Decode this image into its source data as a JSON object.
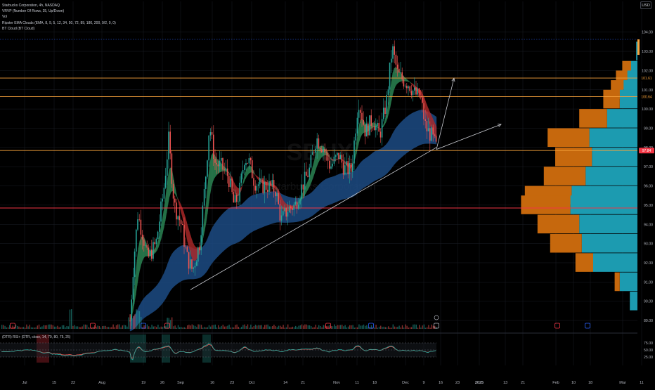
{
  "legend": {
    "title": "Starbucks Corporation, 4h, NASDAQ",
    "lines": [
      "VRVP (Number Of Rows, 35, Up/Down)",
      "Vol",
      "Ripster EMA Clouds (EMA, 8, 9, 5, 12, 34, 50, 72, 89, 180, 200, 9/2, 0, 0)",
      "BT Cloud (BT Cloud)"
    ],
    "currency": "USD",
    "watermark": "SBUX",
    "watermark_sub": "Starbucks Corporation"
  },
  "indicator": {
    "label": "(DTR) RSI+ (DTR, close, 14, 70, 80, 75, 25)",
    "levels": [
      75,
      50,
      25
    ],
    "level_labels": [
      "75.00",
      "50.00",
      "25.00"
    ]
  },
  "time_labels": [
    "Jul",
    "15",
    "22",
    "Aug",
    "19",
    "26",
    "Sep",
    "16",
    "23",
    "Oct",
    "14",
    "21",
    "Nov",
    "11",
    "18",
    "Dec",
    "9",
    "16",
    "23",
    "2025",
    "13",
    "21",
    "Feb",
    "10",
    "18",
    "Mar",
    "11"
  ],
  "price_labels": [
    "104.00",
    "103.00",
    "102.00",
    "101.00",
    "100.00",
    "99.00",
    "98.00",
    "97.00",
    "96.00",
    "95.00",
    "94.00",
    "93.00",
    "92.00",
    "91.00",
    "90.00",
    "89.00"
  ],
  "markers": {
    "current_price": "97.84",
    "level_1": "101.61",
    "level_2": "100.64"
  },
  "colors": {
    "background": "#000000",
    "up": "#26a69a",
    "down": "#ef5350",
    "orange_line": "#f7a23b",
    "red_line": "#f23645",
    "vrvp_up": "#1c9bb0",
    "vrvp_down": "#c6680d",
    "ema_blue": "#1e4f8a",
    "ema_green": "#2e8b57",
    "ema_red": "#b02a2a",
    "grid": "#1a1d24"
  },
  "chart_data": {
    "type": "candlestick",
    "symbol": "SBUX",
    "interval": "4h",
    "ylim": [
      88.6,
      104.5
    ],
    "horizontal_levels": [
      {
        "price": 101.61,
        "color": "orange"
      },
      {
        "price": 100.64,
        "color": "orange"
      },
      {
        "price": 97.84,
        "color": "orange"
      },
      {
        "price": 94.85,
        "color": "red"
      }
    ],
    "trendline": {
      "from": {
        "date": "Sep 9",
        "price": 90.6
      },
      "to": {
        "date": "Dec 13",
        "price": 98.0
      }
    },
    "projections": [
      {
        "from": {
          "date": "Dec 13",
          "price": 97.9
        },
        "to": {
          "date": "Dec 19",
          "price": 101.6
        }
      },
      {
        "from": {
          "date": "Dec 13",
          "price": 97.9
        },
        "to": {
          "date": "Jan 8",
          "price": 99.2
        }
      }
    ],
    "vrvp_rows": [
      {
        "price": 103.0,
        "up": 0.01,
        "down": 0.0
      },
      {
        "price": 102.0,
        "up": 0.05,
        "down": 0.07
      },
      {
        "price": 101.5,
        "up": 0.08,
        "down": 0.09
      },
      {
        "price": 101.0,
        "up": 0.11,
        "down": 0.1
      },
      {
        "price": 100.5,
        "up": 0.14,
        "down": 0.13
      },
      {
        "price": 99.5,
        "up": 0.24,
        "down": 0.22
      },
      {
        "price": 98.5,
        "up": 0.38,
        "down": 0.33
      },
      {
        "price": 97.5,
        "up": 0.36,
        "down": 0.29
      },
      {
        "price": 96.5,
        "up": 0.41,
        "down": 0.33
      },
      {
        "price": 95.5,
        "up": 0.52,
        "down": 0.37
      },
      {
        "price": 95.0,
        "up": 0.53,
        "down": 0.39
      },
      {
        "price": 94.0,
        "up": 0.46,
        "down": 0.33
      },
      {
        "price": 93.0,
        "up": 0.44,
        "down": 0.25
      },
      {
        "price": 92.0,
        "up": 0.35,
        "down": 0.14
      },
      {
        "price": 91.0,
        "up": 0.14,
        "down": 0.04
      },
      {
        "price": 90.0,
        "up": 0.06,
        "down": 0.0
      }
    ],
    "rsi_levels": [
      75,
      50,
      25
    ]
  }
}
